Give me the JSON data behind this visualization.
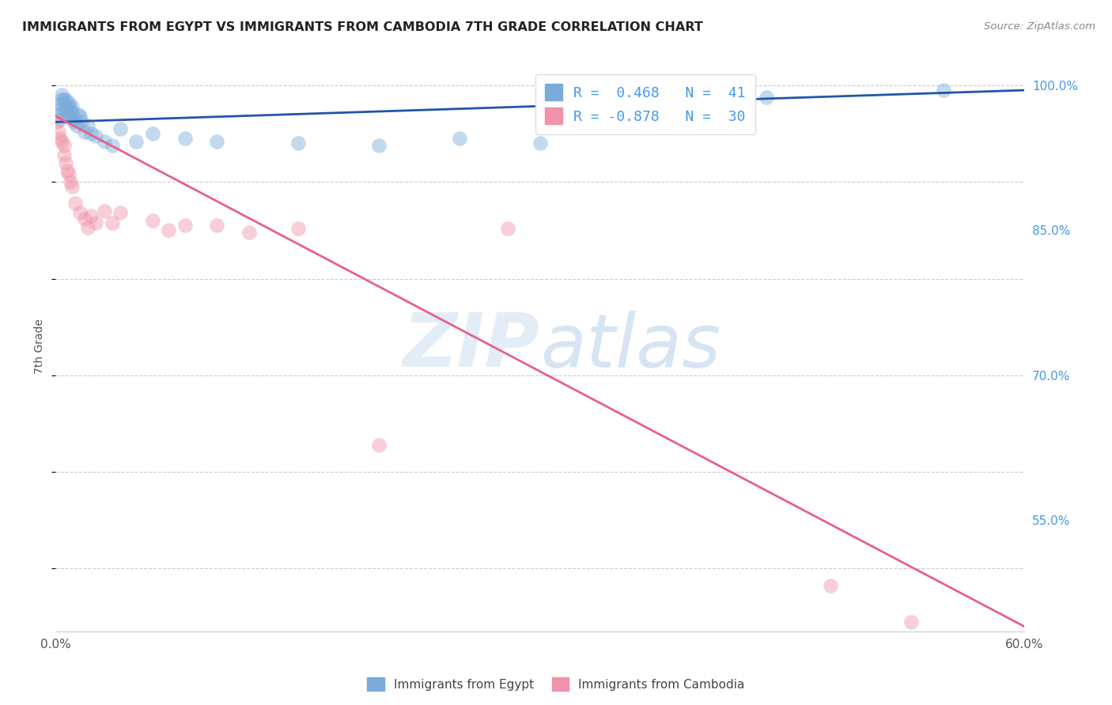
{
  "title": "IMMIGRANTS FROM EGYPT VS IMMIGRANTS FROM CAMBODIA 7TH GRADE CORRELATION CHART",
  "source": "Source: ZipAtlas.com",
  "ylabel": "7th Grade",
  "ytick_labels": [
    "100.0%",
    "85.0%",
    "70.0%",
    "55.0%"
  ],
  "ytick_values": [
    1.0,
    0.85,
    0.7,
    0.55
  ],
  "xlim": [
    0.0,
    0.6
  ],
  "ylim": [
    0.435,
    1.025
  ],
  "watermark_zip": "ZIP",
  "watermark_atlas": "atlas",
  "legend_entries": [
    {
      "label": "R =  0.468   N =  41",
      "color": "#7aabdb"
    },
    {
      "label": "R = -0.878   N =  30",
      "color": "#f093aa"
    }
  ],
  "egypt_scatter_x": [
    0.001,
    0.002,
    0.003,
    0.003,
    0.004,
    0.004,
    0.005,
    0.005,
    0.006,
    0.006,
    0.007,
    0.007,
    0.008,
    0.008,
    0.009,
    0.009,
    0.01,
    0.01,
    0.011,
    0.012,
    0.013,
    0.014,
    0.015,
    0.016,
    0.018,
    0.02,
    0.022,
    0.025,
    0.03,
    0.035,
    0.04,
    0.05,
    0.06,
    0.08,
    0.1,
    0.15,
    0.2,
    0.25,
    0.3,
    0.44,
    0.55
  ],
  "egypt_scatter_y": [
    0.97,
    0.975,
    0.965,
    0.98,
    0.985,
    0.99,
    0.975,
    0.985,
    0.978,
    0.985,
    0.972,
    0.968,
    0.978,
    0.982,
    0.975,
    0.968,
    0.972,
    0.978,
    0.962,
    0.965,
    0.958,
    0.97,
    0.968,
    0.962,
    0.952,
    0.958,
    0.95,
    0.948,
    0.942,
    0.938,
    0.955,
    0.942,
    0.95,
    0.945,
    0.942,
    0.94,
    0.938,
    0.945,
    0.94,
    0.988,
    0.995
  ],
  "egypt_line_x": [
    0.0,
    0.6
  ],
  "egypt_line_y": [
    0.962,
    0.995
  ],
  "cambodia_scatter_x": [
    0.001,
    0.002,
    0.003,
    0.004,
    0.005,
    0.005,
    0.006,
    0.007,
    0.008,
    0.009,
    0.01,
    0.012,
    0.015,
    0.018,
    0.02,
    0.022,
    0.025,
    0.03,
    0.035,
    0.04,
    0.06,
    0.07,
    0.08,
    0.1,
    0.12,
    0.15,
    0.2,
    0.28,
    0.48,
    0.53
  ],
  "cambodia_scatter_y": [
    0.962,
    0.952,
    0.945,
    0.942,
    0.938,
    0.928,
    0.92,
    0.912,
    0.908,
    0.9,
    0.895,
    0.878,
    0.868,
    0.862,
    0.853,
    0.865,
    0.858,
    0.87,
    0.858,
    0.868,
    0.86,
    0.85,
    0.855,
    0.855,
    0.848,
    0.852,
    0.628,
    0.852,
    0.482,
    0.445
  ],
  "cambodia_line_x": [
    0.0,
    0.6
  ],
  "cambodia_line_y": [
    0.968,
    0.44
  ],
  "egypt_color": "#7aabdb",
  "cambodia_color": "#f093aa",
  "egypt_line_color": "#2255aa",
  "cambodia_line_color": "#e8608a",
  "scatter_size": 180,
  "scatter_alpha": 0.45,
  "grid_color": "#cccccc",
  "grid_linestyle": "--",
  "bg_color": "#ffffff",
  "title_color": "#222222",
  "source_color": "#888888",
  "ylabel_color": "#555555",
  "xtick_color": "#555555",
  "ytick_right_color": "#4499ee",
  "legend_text_color": "#4499ee",
  "legend_edge_color": "#dddddd",
  "bottom_legend_label1": "Immigrants from Egypt",
  "bottom_legend_label2": "Immigrants from Cambodia"
}
